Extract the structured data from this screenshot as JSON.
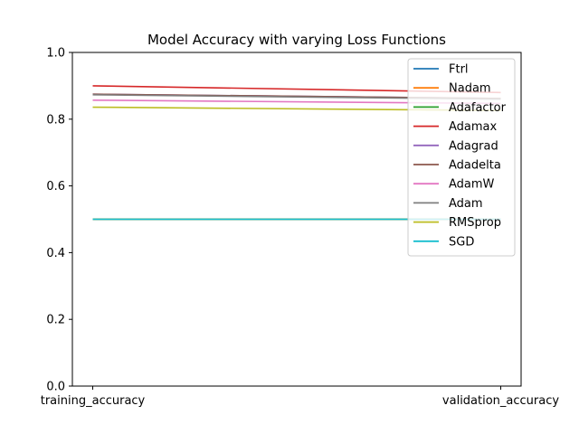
{
  "chart_data": {
    "type": "line",
    "title": "Model Accuracy with varying Loss Functions",
    "xlabel": "",
    "ylabel": "",
    "categories": [
      "training_accuracy",
      "validation_accuracy"
    ],
    "ylim": [
      0.0,
      1.0
    ],
    "yticks": [
      "0.0",
      "0.2",
      "0.4",
      "0.6",
      "0.8",
      "1.0"
    ],
    "grid": false,
    "legend_position": "top-right",
    "series": [
      {
        "name": "Ftrl",
        "color": "#1f77b4",
        "values": [
          0.5,
          0.5
        ]
      },
      {
        "name": "Nadam",
        "color": "#ff7f0e",
        "values": [
          0.5,
          0.5
        ]
      },
      {
        "name": "Adafactor",
        "color": "#2ca02c",
        "values": [
          0.5,
          0.5
        ]
      },
      {
        "name": "Adamax",
        "color": "#d62728",
        "values": [
          0.9,
          0.88
        ]
      },
      {
        "name": "Adagrad",
        "color": "#9467bd",
        "values": [
          0.875,
          0.862
        ]
      },
      {
        "name": "Adadelta",
        "color": "#8c564b",
        "values": [
          0.875,
          0.862
        ]
      },
      {
        "name": "AdamW",
        "color": "#e377c2",
        "values": [
          0.857,
          0.847
        ]
      },
      {
        "name": "Adam",
        "color": "#7f7f7f",
        "values": [
          0.873,
          0.86
        ]
      },
      {
        "name": "RMSprop",
        "color": "#bcbd22",
        "values": [
          0.836,
          0.826
        ]
      },
      {
        "name": "SGD",
        "color": "#17becf",
        "values": [
          0.5,
          0.5
        ]
      }
    ]
  }
}
